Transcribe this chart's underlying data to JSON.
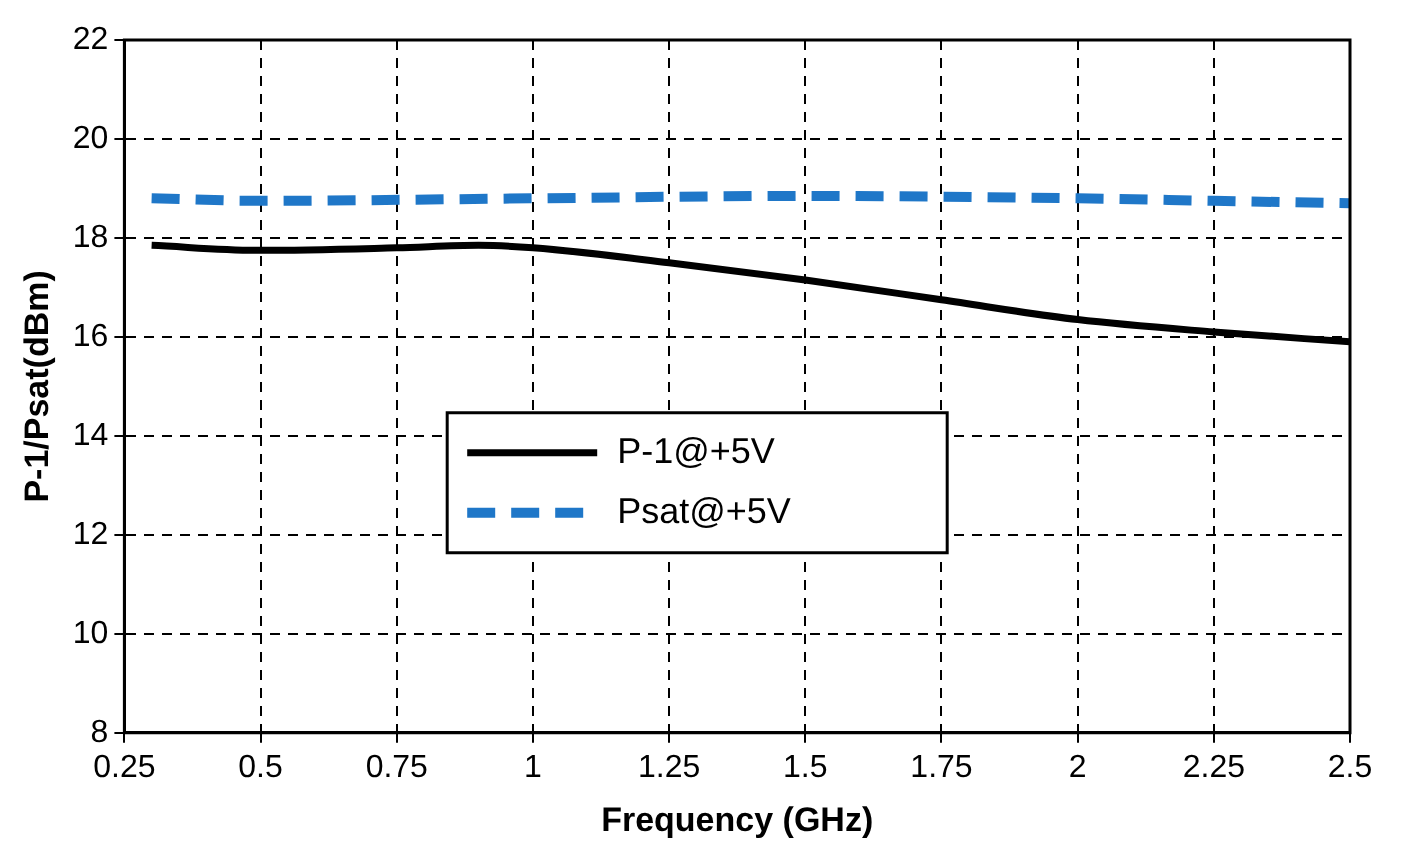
{
  "chart_data": {
    "type": "line",
    "xlabel": "Frequency (GHz)",
    "ylabel": "P-1/Psat(dBm)",
    "xlim": [
      0.25,
      2.5
    ],
    "xticks": [
      0.25,
      0.5,
      0.75,
      1,
      1.25,
      1.5,
      1.75,
      2,
      2.25,
      2.5
    ],
    "ylim": [
      8,
      22
    ],
    "yticks": [
      8,
      10,
      12,
      14,
      16,
      18,
      20,
      22
    ],
    "grid": true,
    "legend": "bottom",
    "marker": "none",
    "series": [
      {
        "name": "P-1@+5V",
        "color": "#000000",
        "line_style": "solid",
        "x": [
          0.3,
          0.5,
          0.75,
          0.9,
          1,
          1.25,
          1.5,
          1.75,
          2,
          2.25,
          2.5
        ],
        "values": [
          17.85,
          17.75,
          17.8,
          17.85,
          17.8,
          17.5,
          17.15,
          16.75,
          16.35,
          16.1,
          15.9
        ]
      },
      {
        "name": "Psat@+5V",
        "color": "#1f77c8",
        "line_style": "dashed",
        "x": [
          0.3,
          0.5,
          1,
          1.5,
          2,
          2.25,
          2.5
        ],
        "values": [
          18.8,
          18.75,
          18.8,
          18.85,
          18.8,
          18.75,
          18.7
        ]
      }
    ]
  }
}
